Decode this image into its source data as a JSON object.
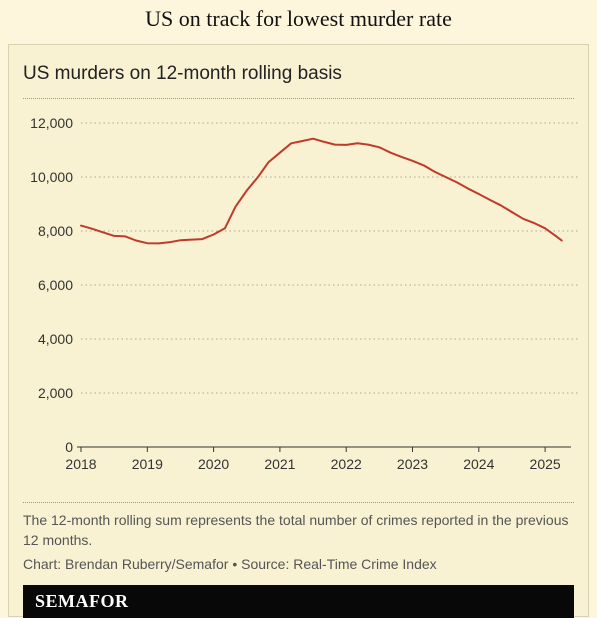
{
  "headline": "US on track for lowest murder rate",
  "chart_data": {
    "type": "line",
    "title": "US murders on 12-month rolling basis",
    "xlabel": "",
    "ylabel": "",
    "ylim": [
      0,
      12000
    ],
    "xlim": [
      2018,
      2025.33
    ],
    "yticks": [
      0,
      2000,
      4000,
      6000,
      8000,
      10000,
      12000
    ],
    "ytick_labels": [
      "0",
      "2,000",
      "4,000",
      "6,000",
      "8,000",
      "10,000",
      "12,000"
    ],
    "xticks": [
      2018,
      2019,
      2020,
      2021,
      2022,
      2023,
      2024,
      2025
    ],
    "xtick_labels": [
      "2018",
      "2019",
      "2020",
      "2021",
      "2022",
      "2023",
      "2024",
      "2025"
    ],
    "grid": true,
    "line_color": "#c0392b",
    "series": [
      {
        "x": [
          2018.0,
          2018.17,
          2018.33,
          2018.5,
          2018.67,
          2018.83,
          2019.0,
          2019.17,
          2019.33,
          2019.5,
          2019.67,
          2019.83,
          2020.0,
          2020.17,
          2020.33,
          2020.5,
          2020.67,
          2020.83,
          2021.0,
          2021.17,
          2021.33,
          2021.5,
          2021.67,
          2021.83,
          2022.0,
          2022.17,
          2022.33,
          2022.5,
          2022.67,
          2022.83,
          2023.0,
          2023.17,
          2023.33,
          2023.5,
          2023.67,
          2023.83,
          2024.0,
          2024.17,
          2024.33,
          2024.5,
          2024.67,
          2024.83,
          2025.0,
          2025.17,
          2025.25
        ],
        "y": [
          8200,
          8080,
          7950,
          7820,
          7800,
          7650,
          7550,
          7540,
          7580,
          7660,
          7680,
          7700,
          7870,
          8100,
          8900,
          9500,
          10000,
          10550,
          10900,
          11250,
          11330,
          11420,
          11300,
          11200,
          11190,
          11250,
          11200,
          11100,
          10900,
          10750,
          10600,
          10430,
          10200,
          10000,
          9800,
          9580,
          9370,
          9150,
          8950,
          8700,
          8450,
          8300,
          8100,
          7800,
          7650
        ]
      }
    ]
  },
  "note": "The 12-month rolling sum represents the total number of crimes reported in the previous 12 months.",
  "credit": "Chart: Brendan Ruberry/Semafor • Source: Real-Time Crime Index",
  "brand": "SEMAFOR"
}
